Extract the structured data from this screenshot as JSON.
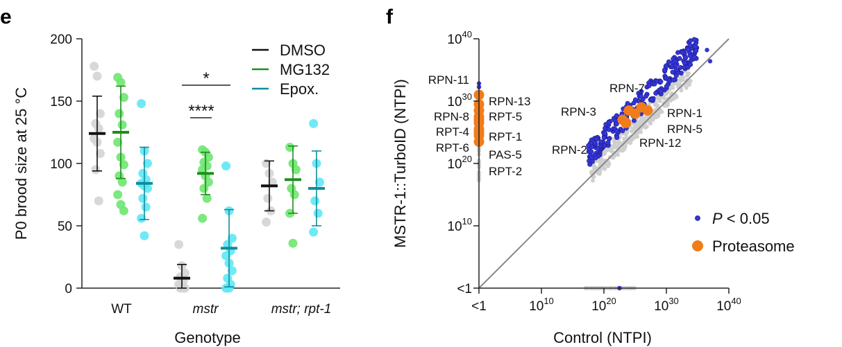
{
  "panels": {
    "e": "e",
    "f": "f"
  },
  "chart_data": [
    {
      "type": "scatter",
      "panel": "e",
      "xlabel": "Genotype",
      "ylabel": "P0 brood size at 25 °C",
      "ylim": [
        0,
        200
      ],
      "yticks": [
        "0",
        "50",
        "100",
        "150",
        "200"
      ],
      "categories": [
        "WT",
        "mstr",
        "mstr; rpt-1"
      ],
      "legend": [
        {
          "name": "DMSO",
          "color": "#111111"
        },
        {
          "name": "MG132",
          "color": "#1a8f1a"
        },
        {
          "name": "Epox.",
          "color": "#0e8c9c"
        }
      ],
      "series": [
        {
          "name": "DMSO",
          "point_color": "#d4d4d4",
          "line_color": "#111111",
          "means": [
            124,
            8,
            82
          ],
          "sd": [
            30,
            11,
            20
          ],
          "points": [
            [
              178,
              170,
              140,
              132,
              128,
              120,
              117,
              108,
              95,
              70
            ],
            [
              35,
              18,
              12,
              9,
              6,
              3,
              1,
              0,
              0,
              0
            ],
            [
              100,
              92,
              85,
              72,
              62,
              53
            ]
          ]
        },
        {
          "name": "MG132",
          "point_color": "#6fe66f",
          "line_color": "#1a8f1a",
          "means": [
            125,
            92,
            87
          ],
          "sd": [
            37,
            17,
            27
          ],
          "points": [
            [
              169,
              165,
              153,
              140,
              131,
              117,
              105,
              99,
              90,
              85,
              75,
              67,
              62
            ],
            [
              111,
              109,
              105,
              101,
              98,
              95,
              90,
              85,
              80,
              72,
              56
            ],
            [
              113,
              100,
              95,
              80,
              75,
              60,
              36
            ]
          ]
        },
        {
          "name": "Epox.",
          "point_color": "#5ee8f5",
          "line_color": "#0e8c9c",
          "means": [
            84,
            32,
            80
          ],
          "sd": [
            29,
            31,
            30
          ],
          "points": [
            [
              148,
              110,
              100,
              92,
              87,
              84,
              82,
              80,
              72,
              65,
              56,
              42
            ],
            [
              98,
              62,
              40,
              35,
              30,
              26,
              20,
              14,
              8,
              3,
              0,
              0
            ],
            [
              132,
              100,
              85,
              70,
              60,
              45
            ]
          ]
        }
      ],
      "annotations": [
        {
          "text": "*",
          "from_series": "DMSO",
          "to_series": "Epox.",
          "category": "mstr"
        },
        {
          "text": "****",
          "from_series": "DMSO",
          "to_series": "MG132",
          "category": "mstr"
        }
      ]
    },
    {
      "type": "scatter",
      "panel": "f",
      "xlabel": "Control (NTPI)",
      "ylabel": "MSTR-1::TurboID (NTPI)",
      "scale": "log",
      "ticks": [
        {
          "base": "<1",
          "exp": ""
        },
        {
          "base": "10",
          "exp": "10"
        },
        {
          "base": "10",
          "exp": "20"
        },
        {
          "base": "10",
          "exp": "30"
        },
        {
          "base": "10",
          "exp": "40"
        }
      ],
      "diagonal": "y = x",
      "legend": [
        {
          "name": "P < 0.05",
          "italic": "P",
          "rest": " < 0.05",
          "color": "#3535d8"
        },
        {
          "name": "Proteasome",
          "color": "#f07c1a"
        }
      ],
      "proteasome_labels": {
        "left": [
          "RPN-11",
          "RPN-8",
          "RPT-4",
          "RPT-6"
        ],
        "right_of_axis": [
          "RPN-13",
          "RPT-5",
          "RPT-1",
          "PAS-5",
          "RPT-2"
        ],
        "cluster": [
          "RPN-7",
          "RPN-3",
          "RPN-1",
          "RPN-5",
          "RPN-2",
          "RPN-12"
        ]
      },
      "proteasome_points": {
        "x_exp": [
          0,
          0,
          0,
          0,
          0,
          0,
          0,
          0,
          0,
          0,
          23,
          24,
          25,
          26,
          23.5,
          27
        ],
        "y_exp": [
          31,
          29.5,
          28.5,
          27.5,
          26.5,
          25.5,
          24.5,
          23.5,
          27,
          25,
          27,
          28.5,
          28,
          29,
          26.5,
          28.5
        ]
      }
    }
  ]
}
